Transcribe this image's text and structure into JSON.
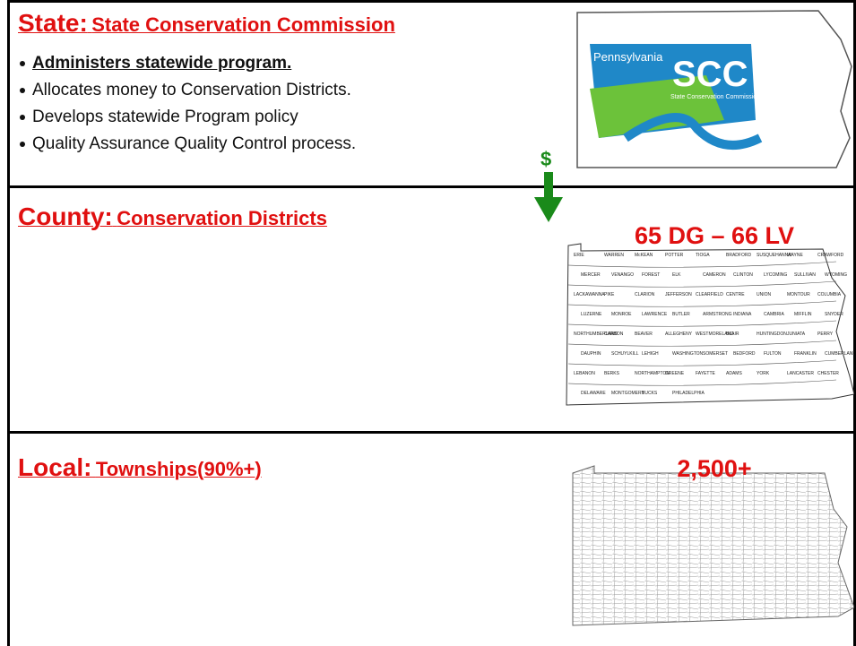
{
  "state": {
    "label": "State:",
    "title": "State Conservation Commission",
    "bullets": [
      "Administers statewide program.",
      "Allocates money to Conservation Districts.",
      "Develops statewide Program policy",
      "Quality Assurance Quality Control process."
    ]
  },
  "funding_symbol": "$",
  "state_logo": {
    "name": "Pennsylvania",
    "acronym": "SCC",
    "subtitle": "State Conservation Commission"
  },
  "county": {
    "label": "County:",
    "title": "Conservation Districts",
    "map_caption": "65 DG – 66 LV",
    "map_labels": [
      "ERIE",
      "WARREN",
      "McKEAN",
      "POTTER",
      "TIOGA",
      "BRADFORD",
      "SUSQUEHANNA",
      "WAYNE",
      "CRAWFORD",
      "MERCER",
      "VENANGO",
      "FOREST",
      "ELK",
      "CAMERON",
      "CLINTON",
      "LYCOMING",
      "SULLIVAN",
      "WYOMING",
      "LACKAWANNA",
      "PIKE",
      "CLARION",
      "JEFFERSON",
      "CLEARFIELD",
      "CENTRE",
      "UNION",
      "MONTOUR",
      "COLUMBIA",
      "LUZERNE",
      "MONROE",
      "LAWRENCE",
      "BUTLER",
      "ARMSTRONG",
      "INDIANA",
      "CAMBRIA",
      "MIFFLIN",
      "SNYDER",
      "NORTHUMBERLAND",
      "CARBON",
      "BEAVER",
      "ALLEGHENY",
      "WESTMORELAND",
      "BLAIR",
      "HUNTINGDON",
      "JUNIATA",
      "PERRY",
      "DAUPHIN",
      "SCHUYLKILL",
      "LEHIGH",
      "WASHINGTON",
      "SOMERSET",
      "BEDFORD",
      "FULTON",
      "FRANKLIN",
      "CUMBERLAND",
      "LEBANON",
      "BERKS",
      "NORTHAMPTON",
      "GREENE",
      "FAYETTE",
      "ADAMS",
      "YORK",
      "LANCASTER",
      "CHESTER",
      "DELAWARE",
      "MONTGOMERY",
      "BUCKS",
      "PHILADELPHIA"
    ]
  },
  "local": {
    "label": "Local:",
    "title": "Townships(90%+)",
    "map_caption": "2,500+"
  }
}
